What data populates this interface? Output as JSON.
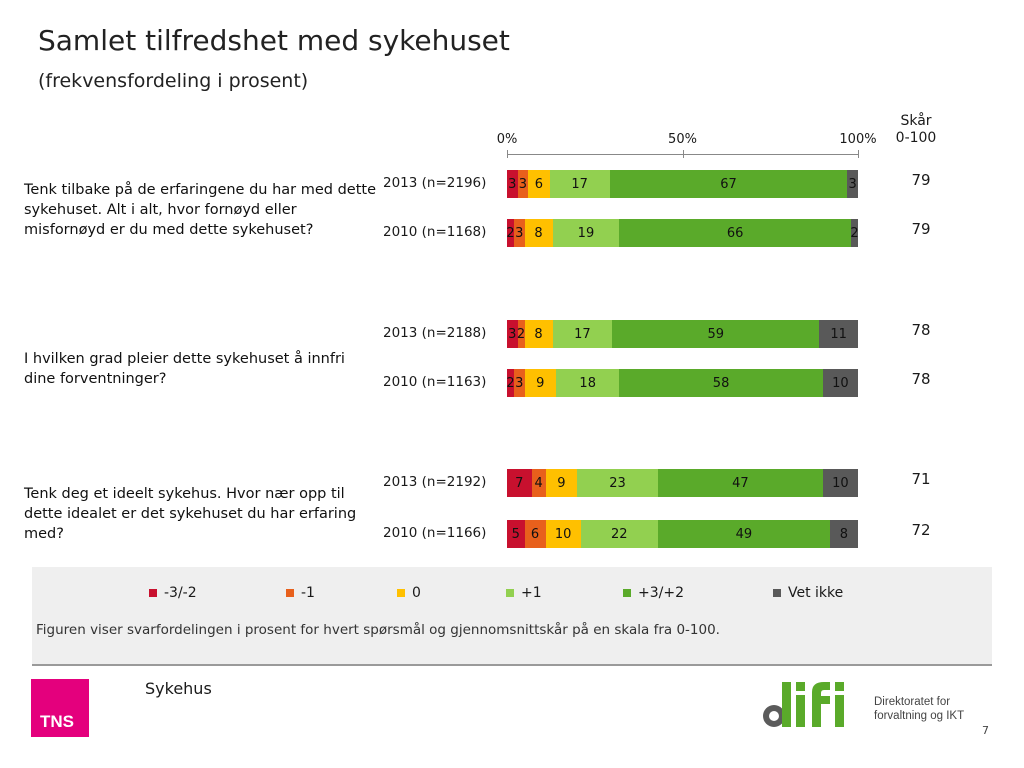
{
  "title": "Samlet tilfredshet med sykehuset",
  "subtitle": "(frekvensfordeling i prosent)",
  "score_header": "Skår\n0-100",
  "colors": {
    "neg32": "#c8102e",
    "neg1": "#e8601c",
    "zero": "#ffc000",
    "pos1": "#92d050",
    "pos32": "#5aaa2a",
    "dontknow": "#595959"
  },
  "chart_data": {
    "type": "bar",
    "orientation": "horizontal",
    "stacked": true,
    "xlim": [
      0,
      100
    ],
    "x_ticks": [
      "0%",
      "50%",
      "100%"
    ],
    "legend_position": "bottom",
    "series": [
      {
        "name": "-3/-2",
        "color": "#c8102e"
      },
      {
        "name": "-1",
        "color": "#e8601c"
      },
      {
        "name": "0",
        "color": "#ffc000"
      },
      {
        "name": "+1",
        "color": "#92d050"
      },
      {
        "name": "+3/+2",
        "color": "#5aaa2a"
      },
      {
        "name": "Vet ikke",
        "color": "#595959"
      }
    ],
    "groups": [
      {
        "question": "Tenk tilbake på de erfaringene du har med dette sykehuset. Alt i alt, hvor fornøyd eller misfornøyd er du med dette sykehuset?",
        "rows": [
          {
            "label": "2013 (n=2196)",
            "values": [
              3,
              3,
              6,
              17,
              67,
              3
            ],
            "score": "79"
          },
          {
            "label": "2010 (n=1168)",
            "values": [
              2,
              3,
              8,
              19,
              66,
              2
            ],
            "score": "79"
          }
        ]
      },
      {
        "question": "I hvilken grad pleier dette sykehuset å innfri dine forventninger?",
        "rows": [
          {
            "label": "2013 (n=2188)",
            "values": [
              3,
              2,
              8,
              17,
              59,
              11
            ],
            "score": "78"
          },
          {
            "label": "2010 (n=1163)",
            "values": [
              2,
              3,
              9,
              18,
              58,
              10
            ],
            "score": "78"
          }
        ]
      },
      {
        "question": "Tenk deg et ideelt sykehus. Hvor nær opp til dette idealet er det sykehuset du har erfaring med?",
        "rows": [
          {
            "label": "2013 (n=2192)",
            "values": [
              7,
              4,
              9,
              23,
              47,
              10
            ],
            "score": "71"
          },
          {
            "label": "2010 (n=1166)",
            "values": [
              5,
              6,
              10,
              22,
              49,
              8
            ],
            "score": "72"
          }
        ]
      }
    ]
  },
  "note": "Figuren viser svarfordelingen i prosent for hvert spørsmål og gjennomsnittskår på en skala fra 0-100.",
  "footer": {
    "section": "Sykehus",
    "tns_logo": "TNS",
    "difi_logo": "difi",
    "difi_tagline_1": "Direktoratet for",
    "difi_tagline_2": "forvaltning og IKT",
    "page_number": "7"
  }
}
